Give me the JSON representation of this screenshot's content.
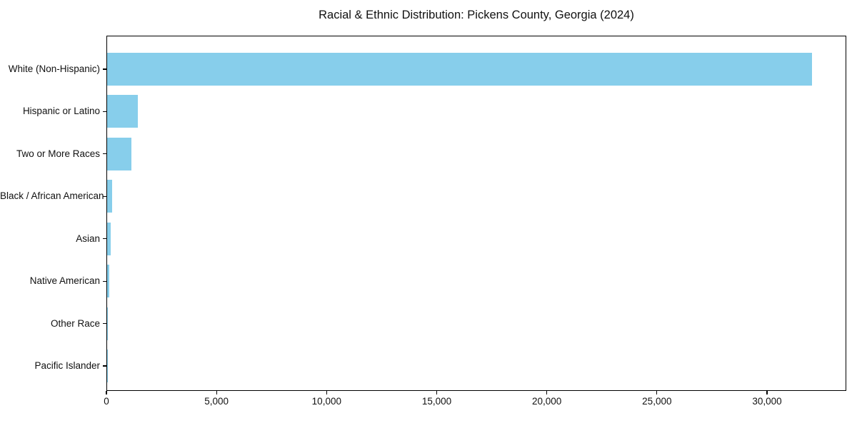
{
  "chart_data": {
    "type": "bar",
    "orientation": "horizontal",
    "title": "Racial & Ethnic Distribution: Pickens County, Georgia (2024)",
    "categories": [
      "White (Non-Hispanic)",
      "Hispanic or Latino",
      "Two or More Races",
      "Black / African American",
      "Asian",
      "Native American",
      "Other Race",
      "Pacific Islander"
    ],
    "values": [
      32000,
      1400,
      1100,
      220,
      150,
      100,
      40,
      10
    ],
    "xlabel": "",
    "ylabel": "",
    "xlim": [
      0,
      33600
    ],
    "x_ticks": [
      0,
      5000,
      10000,
      15000,
      20000,
      25000,
      30000
    ],
    "x_tick_labels": [
      "0",
      "5,000",
      "10,000",
      "15,000",
      "20,000",
      "25,000",
      "30,000"
    ],
    "grid": false,
    "legend": "none",
    "bar_color": "#87CEEB",
    "frame_color": "#000000",
    "text_color": "#111111",
    "background_color": "#ffffff"
  }
}
